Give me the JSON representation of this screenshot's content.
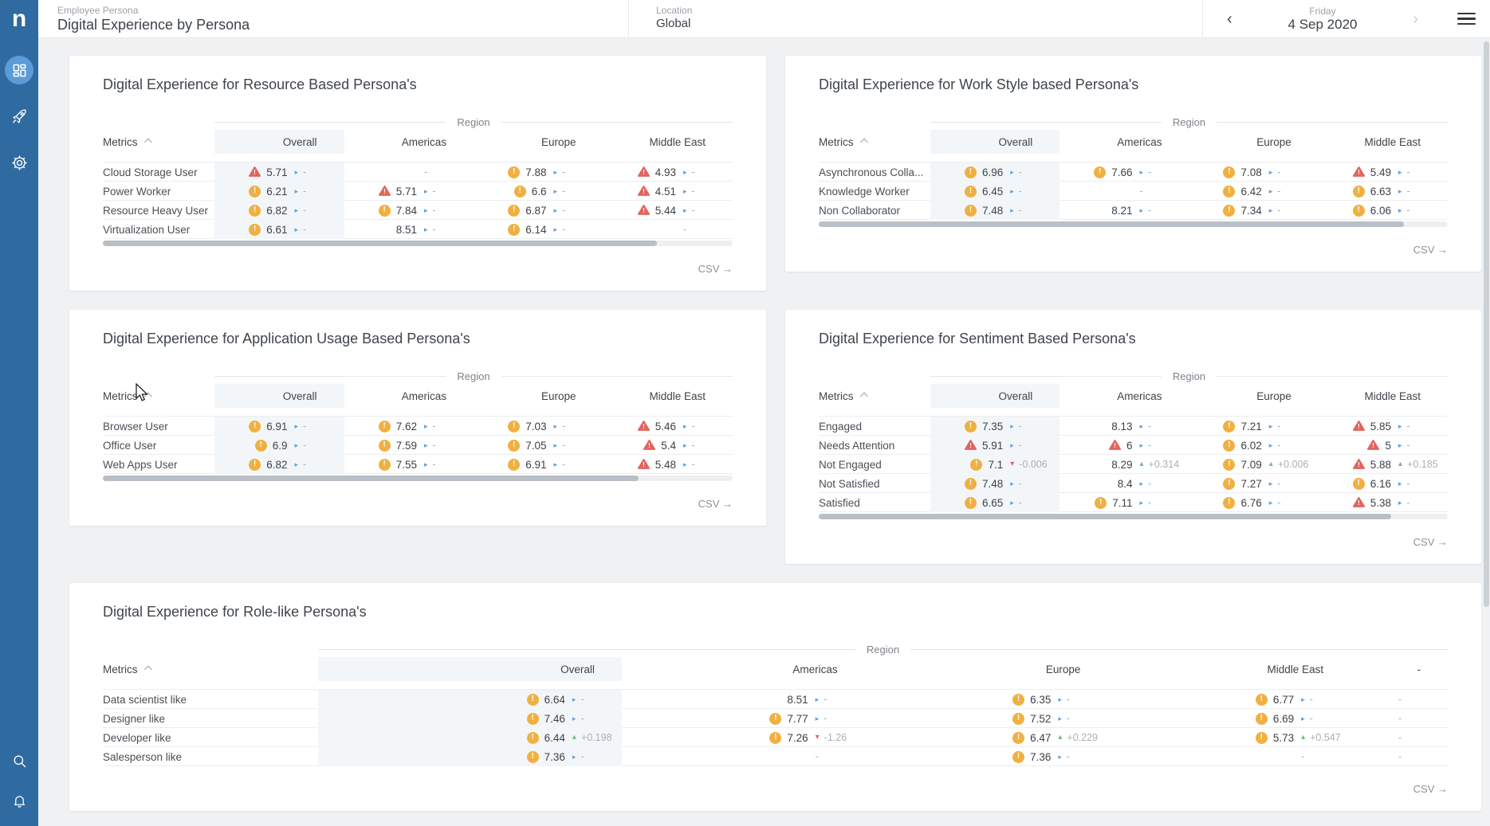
{
  "sidebar": {
    "logo": "n",
    "items": [
      {
        "id": "dashboards",
        "icon": "dashboard-icon",
        "active": true
      },
      {
        "id": "engage",
        "icon": "rocket-icon",
        "active": false
      },
      {
        "id": "settings",
        "icon": "gear-icon",
        "active": false
      }
    ],
    "bottom_items": [
      {
        "id": "search",
        "icon": "search-icon"
      },
      {
        "id": "notifications",
        "icon": "bell-icon"
      }
    ]
  },
  "header": {
    "breadcrumb": "Employee Persona",
    "title": "Digital Experience by Persona",
    "location_label": "Location",
    "location_value": "Global",
    "date_label": "Friday",
    "date_value": "4 Sep 2020",
    "prev_arrow": "‹",
    "next_arrow": "›"
  },
  "labels": {
    "region": "Region",
    "metrics": "Metrics",
    "csv": "CSV →"
  },
  "colors": {
    "sidebar_blue": "#2f6ba1",
    "active_item_blue": "#5b9bd8",
    "warning_yellow": "#f0b041",
    "critical_red": "#e2655e",
    "trend_flat_blue": "#5f9fd8",
    "trend_up_green": "#72b879",
    "trend_down_red": "#e0635c",
    "overall_band": "#f3f6f9"
  },
  "cards": [
    {
      "title": "Digital Experience for Resource Based Persona's",
      "full_width": false,
      "columns": [
        "Overall",
        "Americas",
        "Europe",
        "Middle East"
      ],
      "scrollbar_thumb_pct": 88,
      "rows": [
        {
          "label": "Cloud Storage User",
          "cells": [
            {
              "status": "crit",
              "value": "5.71",
              "trend": "flat",
              "delta": "-"
            },
            {
              "status": "none",
              "value": "",
              "trend": "none",
              "delta": "-"
            },
            {
              "status": "warn",
              "value": "7.88",
              "trend": "flat",
              "delta": "-"
            },
            {
              "status": "crit",
              "value": "4.93",
              "trend": "flat",
              "delta": "-"
            }
          ]
        },
        {
          "label": "Power Worker",
          "cells": [
            {
              "status": "warn",
              "value": "6.21",
              "trend": "flat",
              "delta": "-"
            },
            {
              "status": "crit",
              "value": "5.71",
              "trend": "flat",
              "delta": "-"
            },
            {
              "status": "warn",
              "value": "6.6",
              "trend": "flat",
              "delta": "-"
            },
            {
              "status": "crit",
              "value": "4.51",
              "trend": "flat",
              "delta": "-"
            }
          ]
        },
        {
          "label": "Resource Heavy User",
          "cells": [
            {
              "status": "warn",
              "value": "6.82",
              "trend": "flat",
              "delta": "-"
            },
            {
              "status": "warn",
              "value": "7.84",
              "trend": "flat",
              "delta": "-"
            },
            {
              "status": "warn",
              "value": "6.87",
              "trend": "flat",
              "delta": "-"
            },
            {
              "status": "crit",
              "value": "5.44",
              "trend": "flat",
              "delta": "-"
            }
          ]
        },
        {
          "label": "Virtualization User",
          "cells": [
            {
              "status": "warn",
              "value": "6.61",
              "trend": "flat",
              "delta": "-"
            },
            {
              "status": "none",
              "value": "8.51",
              "trend": "flat",
              "delta": "-"
            },
            {
              "status": "warn",
              "value": "6.14",
              "trend": "flat",
              "delta": "-"
            },
            {
              "status": "none",
              "value": "",
              "trend": "none",
              "delta": "-"
            }
          ]
        }
      ]
    },
    {
      "title": "Digital Experience for Work Style based Persona's",
      "full_width": false,
      "columns": [
        "Overall",
        "Americas",
        "Europe",
        "Middle East"
      ],
      "scrollbar_thumb_pct": 93,
      "rows": [
        {
          "label": "Asynchronous Colla...",
          "cells": [
            {
              "status": "warn",
              "value": "6.96",
              "trend": "flat",
              "delta": "-"
            },
            {
              "status": "warn",
              "value": "7.66",
              "trend": "flat",
              "delta": "-"
            },
            {
              "status": "warn",
              "value": "7.08",
              "trend": "flat",
              "delta": "-"
            },
            {
              "status": "crit",
              "value": "5.49",
              "trend": "flat",
              "delta": "-"
            }
          ]
        },
        {
          "label": "Knowledge Worker",
          "cells": [
            {
              "status": "warn",
              "value": "6.45",
              "trend": "flat",
              "delta": "-"
            },
            {
              "status": "none",
              "value": "",
              "trend": "none",
              "delta": "-"
            },
            {
              "status": "warn",
              "value": "6.42",
              "trend": "flat",
              "delta": "-"
            },
            {
              "status": "warn",
              "value": "6.63",
              "trend": "flat",
              "delta": "-"
            }
          ]
        },
        {
          "label": "Non Collaborator",
          "cells": [
            {
              "status": "warn",
              "value": "7.48",
              "trend": "flat",
              "delta": "-"
            },
            {
              "status": "none",
              "value": "8.21",
              "trend": "flat",
              "delta": "-"
            },
            {
              "status": "warn",
              "value": "7.34",
              "trend": "flat",
              "delta": "-"
            },
            {
              "status": "warn",
              "value": "6.06",
              "trend": "flat",
              "delta": "-"
            }
          ]
        }
      ]
    },
    {
      "title": "Digital Experience for Application Usage Based Persona's",
      "full_width": false,
      "columns": [
        "Overall",
        "Americas",
        "Europe",
        "Middle East"
      ],
      "scrollbar_thumb_pct": 85,
      "rows": [
        {
          "label": "Browser User",
          "cells": [
            {
              "status": "warn",
              "value": "6.91",
              "trend": "flat",
              "delta": "-"
            },
            {
              "status": "warn",
              "value": "7.62",
              "trend": "flat",
              "delta": "-"
            },
            {
              "status": "warn",
              "value": "7.03",
              "trend": "flat",
              "delta": "-"
            },
            {
              "status": "crit",
              "value": "5.46",
              "trend": "flat",
              "delta": "-"
            }
          ]
        },
        {
          "label": "Office User",
          "cells": [
            {
              "status": "warn",
              "value": "6.9",
              "trend": "flat",
              "delta": "-"
            },
            {
              "status": "warn",
              "value": "7.59",
              "trend": "flat",
              "delta": "-"
            },
            {
              "status": "warn",
              "value": "7.05",
              "trend": "flat",
              "delta": "-"
            },
            {
              "status": "crit",
              "value": "5.4",
              "trend": "flat",
              "delta": "-"
            }
          ]
        },
        {
          "label": "Web Apps User",
          "cells": [
            {
              "status": "warn",
              "value": "6.82",
              "trend": "flat",
              "delta": "-"
            },
            {
              "status": "warn",
              "value": "7.55",
              "trend": "flat",
              "delta": "-"
            },
            {
              "status": "warn",
              "value": "6.91",
              "trend": "flat",
              "delta": "-"
            },
            {
              "status": "crit",
              "value": "5.48",
              "trend": "flat",
              "delta": "-"
            }
          ]
        }
      ]
    },
    {
      "title": "Digital Experience for Sentiment Based Persona's",
      "full_width": false,
      "columns": [
        "Overall",
        "Americas",
        "Europe",
        "Middle East"
      ],
      "scrollbar_thumb_pct": 91,
      "rows": [
        {
          "label": "Engaged",
          "cells": [
            {
              "status": "warn",
              "value": "7.35",
              "trend": "flat",
              "delta": "-"
            },
            {
              "status": "none",
              "value": "8.13",
              "trend": "flat",
              "delta": "-"
            },
            {
              "status": "warn",
              "value": "7.21",
              "trend": "flat",
              "delta": "-"
            },
            {
              "status": "crit",
              "value": "5.85",
              "trend": "flat",
              "delta": "-"
            }
          ]
        },
        {
          "label": "Needs Attention",
          "cells": [
            {
              "status": "crit",
              "value": "5.91",
              "trend": "flat",
              "delta": "-"
            },
            {
              "status": "crit",
              "value": "6",
              "trend": "flat",
              "delta": "-"
            },
            {
              "status": "warn",
              "value": "6.02",
              "trend": "flat",
              "delta": "-"
            },
            {
              "status": "crit",
              "value": "5",
              "trend": "flat",
              "delta": "-"
            }
          ]
        },
        {
          "label": "Not Engaged",
          "cells": [
            {
              "status": "warn",
              "value": "7.1",
              "trend": "down",
              "delta": "-0.006"
            },
            {
              "status": "none",
              "value": "8.29",
              "trend": "up",
              "delta": "+0.314"
            },
            {
              "status": "warn",
              "value": "7.09",
              "trend": "up",
              "delta": "+0.006"
            },
            {
              "status": "crit",
              "value": "5.88",
              "trend": "up",
              "delta": "+0.185"
            }
          ]
        },
        {
          "label": "Not Satisfied",
          "cells": [
            {
              "status": "warn",
              "value": "7.48",
              "trend": "flat",
              "delta": "-"
            },
            {
              "status": "none",
              "value": "8.4",
              "trend": "flat",
              "delta": "-"
            },
            {
              "status": "warn",
              "value": "7.27",
              "trend": "flat",
              "delta": "-"
            },
            {
              "status": "warn",
              "value": "6.16",
              "trend": "flat",
              "delta": "-"
            }
          ]
        },
        {
          "label": "Satisfied",
          "cells": [
            {
              "status": "warn",
              "value": "6.65",
              "trend": "flat",
              "delta": "-"
            },
            {
              "status": "warn",
              "value": "7.11",
              "trend": "flat",
              "delta": "-"
            },
            {
              "status": "warn",
              "value": "6.76",
              "trend": "flat",
              "delta": "-"
            },
            {
              "status": "crit",
              "value": "5.38",
              "trend": "flat",
              "delta": "-"
            }
          ]
        }
      ]
    },
    {
      "title": "Digital Experience for Role-like Persona's",
      "full_width": true,
      "columns": [
        "Overall",
        "Americas",
        "Europe",
        "Middle East",
        "-"
      ],
      "scrollbar_thumb_pct": null,
      "rows": [
        {
          "label": "Data scientist like",
          "cells": [
            {
              "status": "warn",
              "value": "6.64",
              "trend": "flat",
              "delta": "-"
            },
            {
              "status": "none",
              "value": "8.51",
              "trend": "flat",
              "delta": "-"
            },
            {
              "status": "warn",
              "value": "6.35",
              "trend": "flat",
              "delta": "-"
            },
            {
              "status": "warn",
              "value": "6.77",
              "trend": "flat",
              "delta": "-"
            },
            {
              "status": "none",
              "value": "",
              "trend": "none",
              "delta": "-"
            }
          ]
        },
        {
          "label": "Designer like",
          "cells": [
            {
              "status": "warn",
              "value": "7.46",
              "trend": "flat",
              "delta": "-"
            },
            {
              "status": "warn",
              "value": "7.77",
              "trend": "flat",
              "delta": "-"
            },
            {
              "status": "warn",
              "value": "7.52",
              "trend": "flat",
              "delta": "-"
            },
            {
              "status": "warn",
              "value": "6.69",
              "trend": "flat",
              "delta": "-"
            },
            {
              "status": "none",
              "value": "",
              "trend": "none",
              "delta": "-"
            }
          ]
        },
        {
          "label": "Developer like",
          "cells": [
            {
              "status": "warn",
              "value": "6.44",
              "trend": "up",
              "delta": "+0.198"
            },
            {
              "status": "warn",
              "value": "7.26",
              "trend": "down",
              "delta": "-1.26"
            },
            {
              "status": "warn",
              "value": "6.47",
              "trend": "up",
              "delta": "+0.229"
            },
            {
              "status": "warn",
              "value": "5.73",
              "trend": "up",
              "delta": "+0.547"
            },
            {
              "status": "none",
              "value": "",
              "trend": "none",
              "delta": "-"
            }
          ]
        },
        {
          "label": "Salesperson like",
          "cells": [
            {
              "status": "warn",
              "value": "7.36",
              "trend": "flat",
              "delta": "-"
            },
            {
              "status": "none",
              "value": "",
              "trend": "none",
              "delta": "-"
            },
            {
              "status": "warn",
              "value": "7.36",
              "trend": "flat",
              "delta": "-"
            },
            {
              "status": "none",
              "value": "",
              "trend": "none",
              "delta": "-"
            },
            {
              "status": "none",
              "value": "",
              "trend": "none",
              "delta": "-"
            }
          ]
        }
      ]
    }
  ]
}
